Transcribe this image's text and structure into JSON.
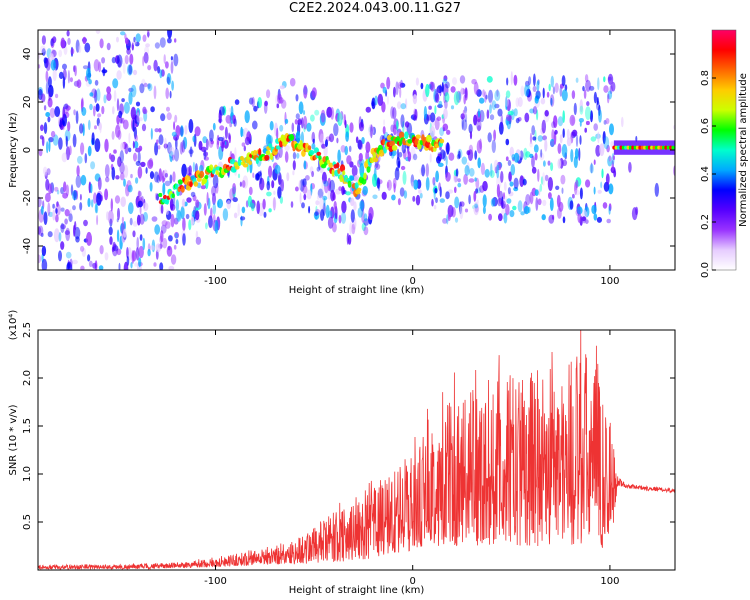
{
  "title": "C2E2.2024.043.00.11.G27",
  "chart_data": [
    {
      "type": "heatmap",
      "xlabel": "Height of straight line (km)",
      "ylabel": "Frequency (Hz)",
      "xlim": [
        -190,
        133
      ],
      "ylim": [
        -50,
        50
      ],
      "xticks": [
        -100,
        0,
        100
      ],
      "yticks": [
        -40,
        -20,
        0,
        20,
        40
      ],
      "colorbar": {
        "label": "Normalized spectral amplitude",
        "range": [
          0.0,
          1.0
        ],
        "ticks": [
          0.0,
          0.2,
          0.4,
          0.6,
          0.8
        ],
        "tick_labels": [
          "0.0",
          "0.2",
          "0.4",
          "0.6",
          "0.8"
        ],
        "colors": [
          "#ffffff",
          "#e6ccff",
          "#9933ff",
          "#5500ff",
          "#0000ff",
          "#00aaff",
          "#00ffcc",
          "#00ff00",
          "#ccff00",
          "#ffcc00",
          "#ff6600",
          "#ff0000",
          "#ff0066"
        ]
      },
      "ridge": {
        "x": [
          -125,
          -115,
          -100,
          -85,
          -70,
          -66,
          -50,
          -35,
          -28,
          -22,
          -15,
          -5,
          0,
          5,
          10,
          15
        ],
        "y": [
          -20,
          -14,
          -9,
          -4,
          0,
          5,
          -2,
          -10,
          -17,
          -5,
          2,
          4,
          4,
          3,
          2,
          2
        ]
      },
      "flat_band": {
        "x": [
          102,
          133
        ],
        "y": 1
      }
    },
    {
      "type": "line",
      "xlabel": "Height of straight line (km)",
      "ylabel": "SNR (10 * v/v)",
      "ylabel_multiplier": "(x10⁴)",
      "xlim": [
        -190,
        133
      ],
      "ylim": [
        0,
        2.5
      ],
      "xticks": [
        -100,
        0,
        100
      ],
      "yticks": [
        0.5,
        1.0,
        1.5,
        2.0,
        2.5
      ],
      "ytick_labels": [
        "0.5",
        "1.0",
        "1.5",
        "2.0",
        "2.5"
      ],
      "color": "#ee3333",
      "envelope": {
        "x": [
          -190,
          -160,
          -140,
          -120,
          -100,
          -80,
          -60,
          -40,
          -30,
          -20,
          -10,
          0,
          10,
          20,
          30,
          40,
          50,
          60,
          70,
          80,
          90,
          100,
          104,
          108,
          120,
          133
        ],
        "y_upper": [
          0.05,
          0.06,
          0.06,
          0.08,
          0.12,
          0.22,
          0.32,
          0.6,
          0.75,
          0.95,
          1.05,
          1.2,
          1.55,
          1.8,
          1.9,
          2.0,
          2.05,
          2.1,
          2.2,
          2.25,
          2.3,
          1.7,
          1.0,
          0.9,
          0.88,
          0.85
        ],
        "y_lower": [
          0.01,
          0.01,
          0.01,
          0.02,
          0.03,
          0.05,
          0.06,
          0.08,
          0.1,
          0.12,
          0.15,
          0.2,
          0.25,
          0.25,
          0.25,
          0.25,
          0.25,
          0.25,
          0.25,
          0.25,
          0.25,
          0.2,
          0.85,
          0.85,
          0.82,
          0.8
        ]
      }
    }
  ]
}
